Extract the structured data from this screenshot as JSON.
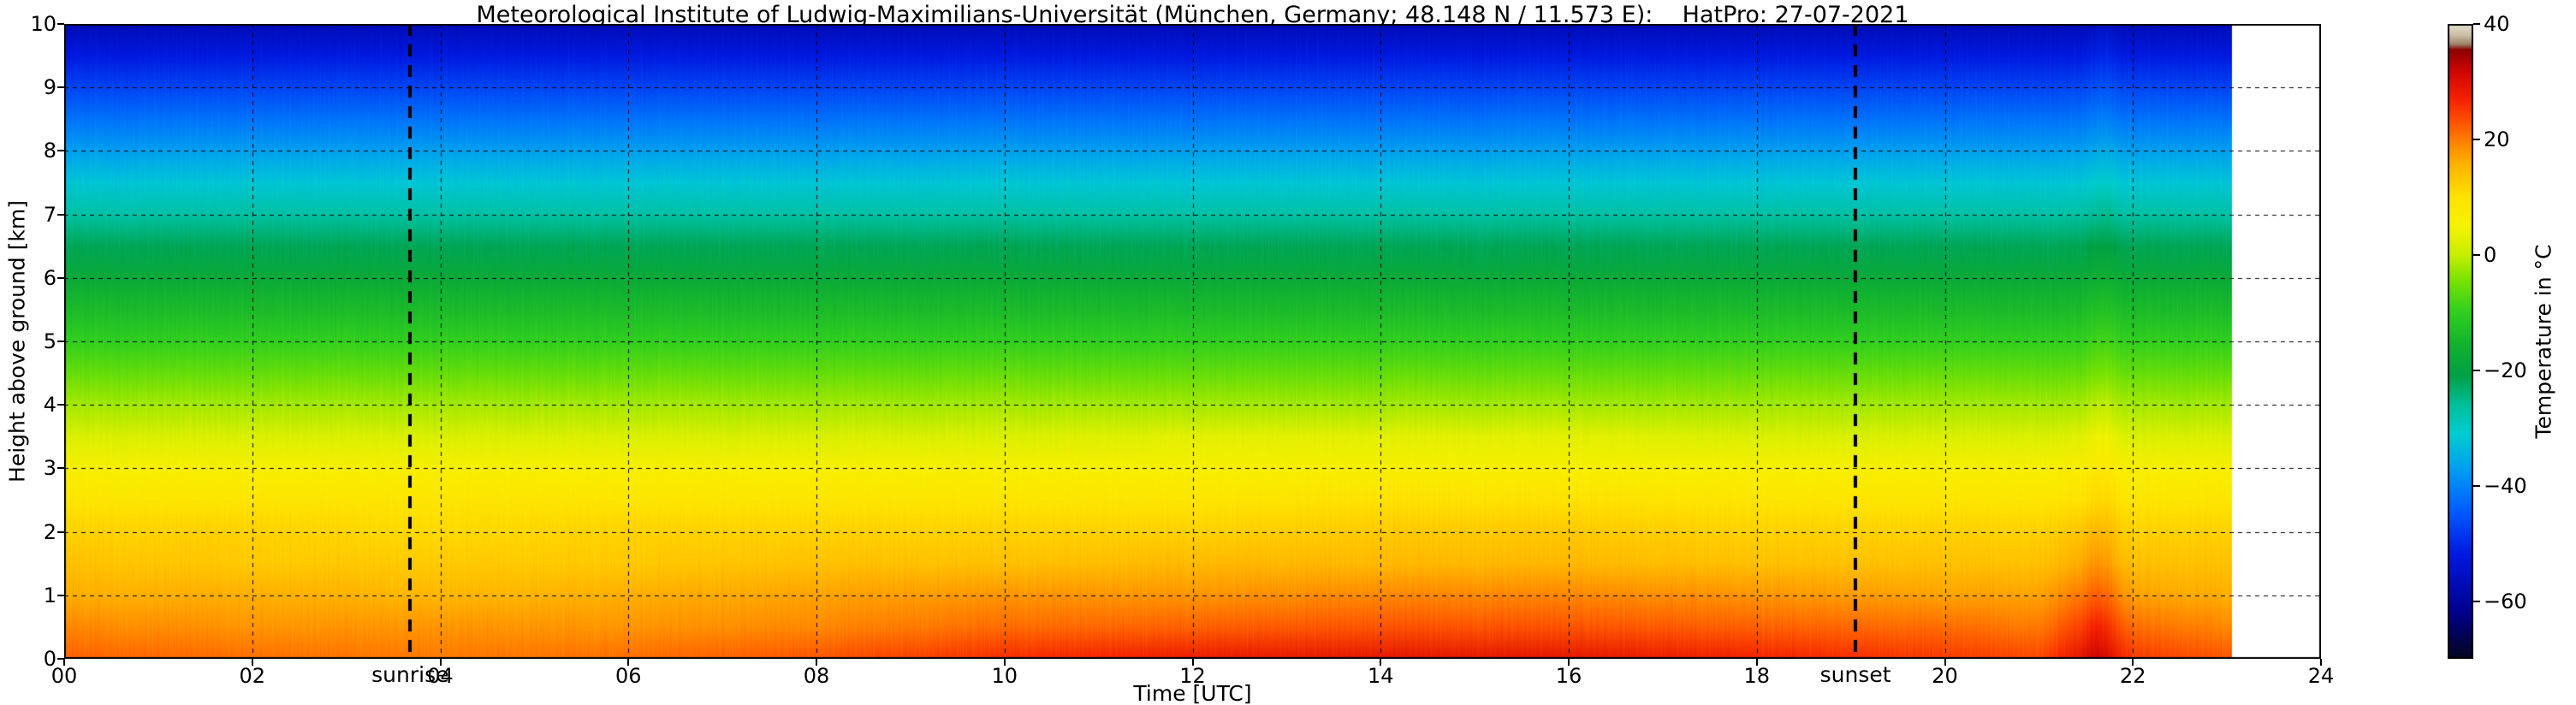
{
  "chart_data": {
    "type": "heatmap",
    "title": "Meteorological Institute of Ludwig-Maximilians-Universität (München, Germany; 48.148 N / 11.573 E):    HatPro: 27-07-2021",
    "xlabel": "Time [UTC]",
    "ylabel": "Height above ground [km]",
    "value_units": "°C",
    "x_range": [
      0,
      24
    ],
    "y_range": [
      0,
      10
    ],
    "x_ticks": [
      "00",
      "02",
      "04",
      "06",
      "08",
      "10",
      "12",
      "14",
      "16",
      "18",
      "20",
      "22",
      "24"
    ],
    "x_tick_values": [
      0,
      2,
      4,
      6,
      8,
      10,
      12,
      14,
      16,
      18,
      20,
      22,
      24
    ],
    "y_ticks": [
      "0",
      "1",
      "2",
      "3",
      "4",
      "5",
      "6",
      "7",
      "8",
      "9",
      "10"
    ],
    "y_tick_values": [
      0,
      1,
      2,
      3,
      4,
      5,
      6,
      7,
      8,
      9,
      10
    ],
    "grid": true,
    "data_end_time": 23.05,
    "x": [
      0,
      2,
      4,
      6,
      8,
      10,
      12,
      14,
      16,
      18,
      20,
      21,
      21.6,
      22,
      23
    ],
    "y": [
      0,
      0.5,
      1,
      1.5,
      2,
      2.5,
      3,
      3.5,
      4,
      4.5,
      5,
      5.5,
      6,
      6.5,
      7,
      7.5,
      8,
      8.5,
      9,
      9.5,
      10
    ],
    "values": [
      [
        22,
        21,
        20,
        21,
        23,
        26,
        28,
        29,
        29,
        27,
        25,
        24,
        31,
        25,
        23
      ],
      [
        19,
        18,
        18,
        18,
        19,
        21,
        22,
        23,
        23,
        22,
        21,
        20,
        26,
        21,
        19
      ],
      [
        16,
        16,
        15,
        16,
        17,
        18,
        18,
        19,
        19,
        18,
        17,
        17,
        21,
        17,
        16
      ],
      [
        14,
        13,
        13,
        13,
        14,
        14,
        15,
        15,
        15,
        14,
        14,
        14,
        17,
        14,
        14
      ],
      [
        12,
        12,
        11,
        12,
        12,
        12,
        12,
        13,
        13,
        12,
        12,
        12,
        14,
        12,
        12
      ],
      [
        9,
        9,
        9,
        9,
        9,
        9,
        9,
        10,
        10,
        9,
        9,
        9,
        10,
        9,
        9
      ],
      [
        6,
        6,
        6,
        6,
        6,
        6,
        6,
        6,
        6,
        6,
        6,
        6,
        7,
        6,
        6
      ],
      [
        2,
        2,
        2,
        2,
        2,
        2,
        3,
        3,
        3,
        2,
        2,
        2,
        3,
        2,
        2
      ],
      [
        -2,
        -2,
        -2,
        -2,
        -2,
        -2,
        -2,
        -2,
        -2,
        -2,
        -2,
        -2,
        -2,
        -2,
        -2
      ],
      [
        -6,
        -6,
        -6,
        -6,
        -6,
        -6,
        -6,
        -6,
        -6,
        -6,
        -6,
        -6,
        -6,
        -6,
        -6
      ],
      [
        -10,
        -10,
        -10,
        -10,
        -10,
        -10,
        -10,
        -10,
        -10,
        -10,
        -10,
        -10,
        -10,
        -10,
        -10
      ],
      [
        -14,
        -14,
        -14,
        -14,
        -14,
        -14,
        -14,
        -14,
        -14,
        -14,
        -14,
        -14,
        -14,
        -14,
        -14
      ],
      [
        -18,
        -18,
        -18,
        -18,
        -18,
        -18,
        -18,
        -18,
        -18,
        -18,
        -18,
        -18,
        -18,
        -18,
        -18
      ],
      [
        -22,
        -22,
        -22,
        -22,
        -22,
        -22,
        -22,
        -22,
        -22,
        -22,
        -22,
        -22,
        -22,
        -22,
        -22
      ],
      [
        -27,
        -27,
        -27,
        -27,
        -27,
        -27,
        -27,
        -27,
        -27,
        -27,
        -27,
        -27,
        -27,
        -27,
        -27
      ],
      [
        -32,
        -32,
        -32,
        -32,
        -32,
        -32,
        -32,
        -32,
        -32,
        -32,
        -32,
        -32,
        -32,
        -32,
        -32
      ],
      [
        -37,
        -37,
        -37,
        -37,
        -37,
        -37,
        -37,
        -37,
        -37,
        -37,
        -37,
        -37,
        -37,
        -37,
        -37
      ],
      [
        -42,
        -42,
        -42,
        -42,
        -42,
        -42,
        -42,
        -42,
        -42,
        -42,
        -42,
        -42,
        -42,
        -42,
        -42
      ],
      [
        -47,
        -47,
        -47,
        -47,
        -47,
        -47,
        -47,
        -47,
        -47,
        -47,
        -47,
        -47,
        -47,
        -47,
        -47
      ],
      [
        -52,
        -52,
        -52,
        -52,
        -52,
        -52,
        -52,
        -52,
        -52,
        -52,
        -52,
        -52,
        -52,
        -52,
        -52
      ],
      [
        -57,
        -57,
        -57,
        -57,
        -57,
        -57,
        -57,
        -57,
        -57,
        -57,
        -57,
        -57,
        -57,
        -57,
        -57
      ]
    ],
    "colorbar": {
      "label": "Temperature in  °C",
      "range": [
        -70,
        40
      ],
      "tick_values": [
        40,
        20,
        0,
        -20,
        -40,
        -60
      ],
      "tick_labels": [
        "40",
        "20",
        "0",
        "−20",
        "−40",
        "−60"
      ],
      "stops": [
        [
          -70,
          "#05051e"
        ],
        [
          -62,
          "#00008b"
        ],
        [
          -52,
          "#0018e0"
        ],
        [
          -44,
          "#0060ff"
        ],
        [
          -37,
          "#00a0f0"
        ],
        [
          -31,
          "#00cdd0"
        ],
        [
          -26,
          "#00bf9a"
        ],
        [
          -21,
          "#00a045"
        ],
        [
          -16,
          "#10b030"
        ],
        [
          -10,
          "#30cf20"
        ],
        [
          -4,
          "#7fe400"
        ],
        [
          0,
          "#c8ee00"
        ],
        [
          5,
          "#f6f200"
        ],
        [
          10,
          "#ffe300"
        ],
        [
          16,
          "#ffb000"
        ],
        [
          22,
          "#ff6000"
        ],
        [
          27,
          "#f52000"
        ],
        [
          32,
          "#cc0500"
        ],
        [
          35.5,
          "#8b0000"
        ],
        [
          36.5,
          "#9c8468"
        ],
        [
          38,
          "#c9bda4"
        ],
        [
          40,
          "#e6e2d2"
        ]
      ]
    },
    "annotations": {
      "sunrise": {
        "label": "sunrise",
        "time": 3.68
      },
      "sunset": {
        "label": "sunset",
        "time": 19.05
      }
    },
    "anomaly": {
      "time": 21.6,
      "description": "warm near-surface streak",
      "surface_temp": 31
    }
  }
}
